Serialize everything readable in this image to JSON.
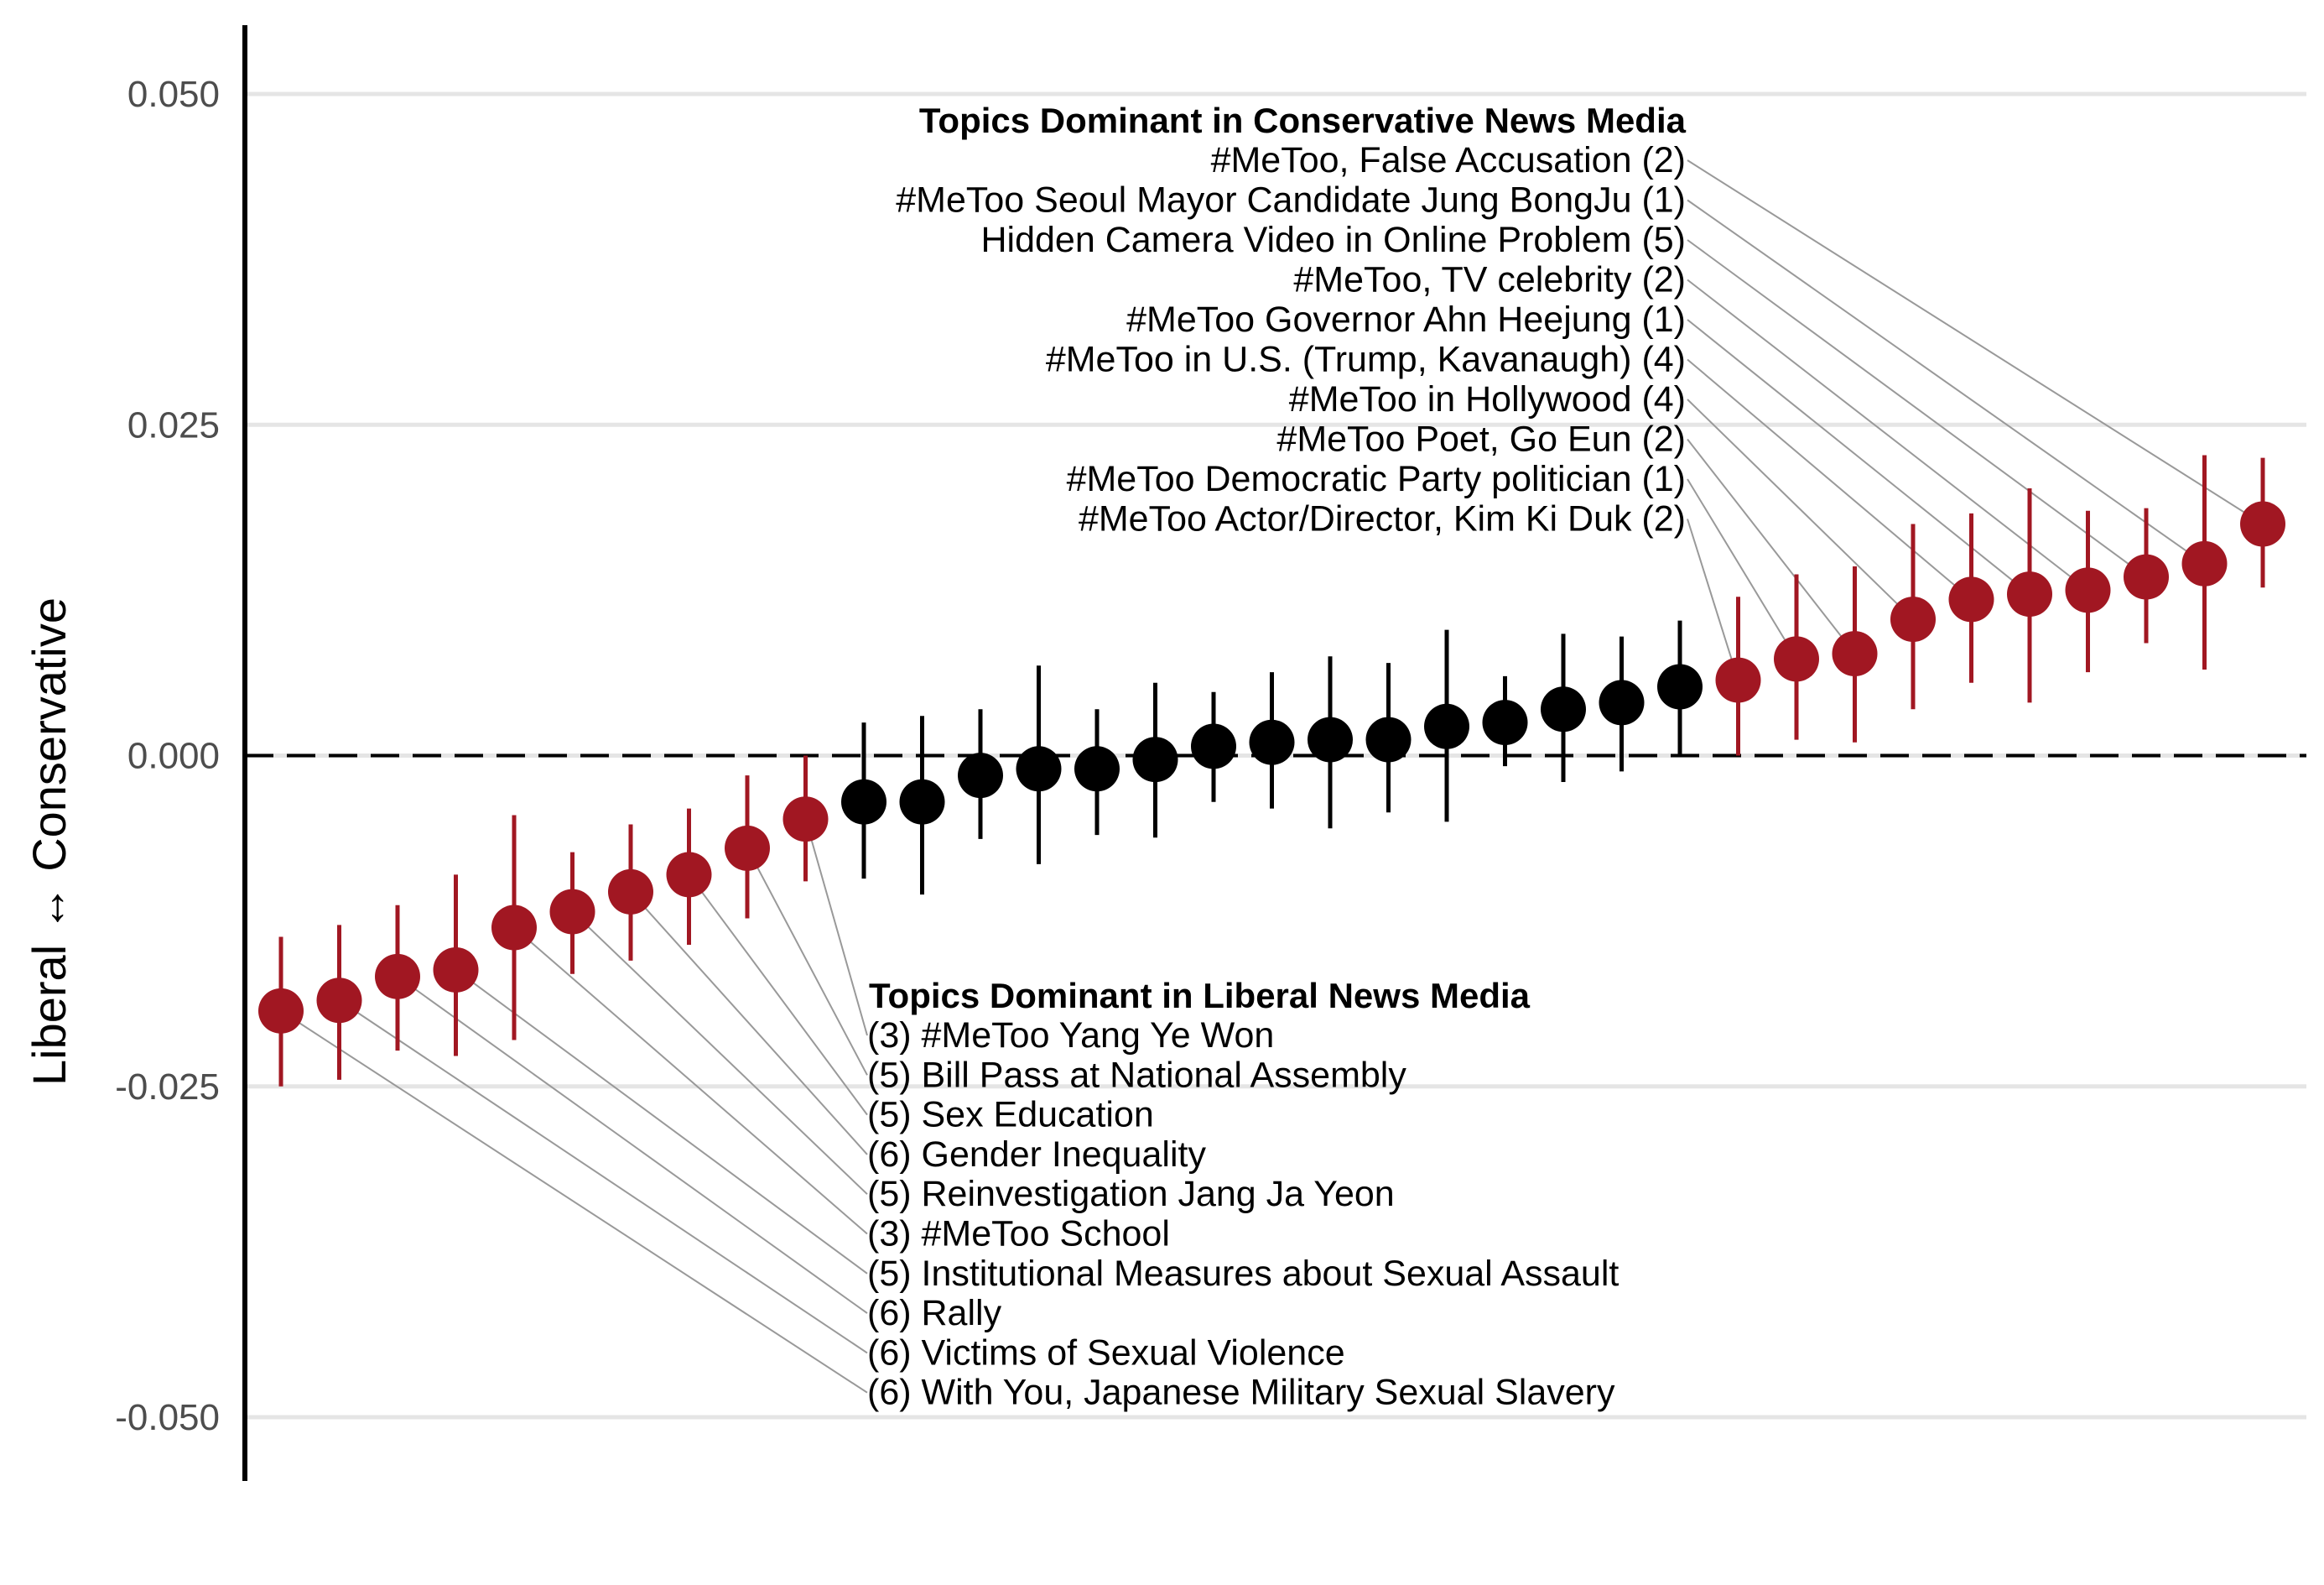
{
  "chart_data": {
    "type": "scatter",
    "title": "",
    "xlabel": "",
    "ylabel": "Liberal ↔ Conservative",
    "ylim": [
      -0.055,
      0.055
    ],
    "yticks": [
      0.05,
      0.025,
      0.0,
      -0.025,
      -0.05
    ],
    "ytick_labels": [
      "0.050",
      "0.025",
      "0.000",
      "-0.025",
      "-0.050"
    ],
    "grid": "horizontal",
    "reference_line": 0.0,
    "colors": {
      "highlight": "#a11722",
      "neutral": "#000000",
      "grid": "#e5e5e5",
      "leader": "#999999"
    },
    "series": [
      {
        "points": [
          {
            "x": 1,
            "y": -0.0193,
            "lo": -0.025,
            "hi": -0.0137,
            "group": "liberal"
          },
          {
            "x": 2,
            "y": -0.0185,
            "lo": -0.0245,
            "hi": -0.0128,
            "group": "liberal"
          },
          {
            "x": 3,
            "y": -0.0167,
            "lo": -0.0223,
            "hi": -0.0113,
            "group": "liberal"
          },
          {
            "x": 4,
            "y": -0.0162,
            "lo": -0.0227,
            "hi": -0.009,
            "group": "liberal"
          },
          {
            "x": 5,
            "y": -0.013,
            "lo": -0.0215,
            "hi": -0.0045,
            "group": "liberal"
          },
          {
            "x": 6,
            "y": -0.0118,
            "lo": -0.0165,
            "hi": -0.0073,
            "group": "liberal"
          },
          {
            "x": 7,
            "y": -0.0103,
            "lo": -0.0155,
            "hi": -0.0052,
            "group": "liberal"
          },
          {
            "x": 8,
            "y": -0.009,
            "lo": -0.0143,
            "hi": -0.004,
            "group": "liberal"
          },
          {
            "x": 9,
            "y": -0.007,
            "lo": -0.0123,
            "hi": -0.0015,
            "group": "liberal"
          },
          {
            "x": 10,
            "y": -0.0048,
            "lo": -0.0095,
            "hi": -0.0,
            "group": "liberal"
          },
          {
            "x": 11,
            "y": -0.0035,
            "lo": -0.0093,
            "hi": 0.0025,
            "group": "neutral"
          },
          {
            "x": 12,
            "y": -0.0035,
            "lo": -0.0105,
            "hi": 0.003,
            "group": "neutral"
          },
          {
            "x": 13,
            "y": -0.0015,
            "lo": -0.0063,
            "hi": 0.0035,
            "group": "neutral"
          },
          {
            "x": 14,
            "y": -0.001,
            "lo": -0.0082,
            "hi": 0.0068,
            "group": "neutral"
          },
          {
            "x": 15,
            "y": -0.001,
            "lo": -0.006,
            "hi": 0.0035,
            "group": "neutral"
          },
          {
            "x": 16,
            "y": -0.0003,
            "lo": -0.0062,
            "hi": 0.0055,
            "group": "neutral"
          },
          {
            "x": 17,
            "y": 0.0007,
            "lo": -0.0035,
            "hi": 0.0048,
            "group": "neutral"
          },
          {
            "x": 18,
            "y": 0.001,
            "lo": -0.004,
            "hi": 0.0063,
            "group": "neutral"
          },
          {
            "x": 19,
            "y": 0.0012,
            "lo": -0.0055,
            "hi": 0.0075,
            "group": "neutral"
          },
          {
            "x": 20,
            "y": 0.0012,
            "lo": -0.0043,
            "hi": 0.007,
            "group": "neutral"
          },
          {
            "x": 21,
            "y": 0.0022,
            "lo": -0.005,
            "hi": 0.0095,
            "group": "neutral"
          },
          {
            "x": 22,
            "y": 0.0025,
            "lo": -0.0008,
            "hi": 0.006,
            "group": "neutral"
          },
          {
            "x": 23,
            "y": 0.0035,
            "lo": -0.002,
            "hi": 0.0092,
            "group": "neutral"
          },
          {
            "x": 24,
            "y": 0.004,
            "lo": -0.0012,
            "hi": 0.009,
            "group": "neutral"
          },
          {
            "x": 25,
            "y": 0.0052,
            "lo": 0.0,
            "hi": 0.0102,
            "group": "neutral"
          },
          {
            "x": 26,
            "y": 0.0057,
            "lo": 0.0,
            "hi": 0.012,
            "group": "conservative"
          },
          {
            "x": 27,
            "y": 0.0073,
            "lo": 0.0012,
            "hi": 0.0137,
            "group": "conservative"
          },
          {
            "x": 28,
            "y": 0.0077,
            "lo": 0.001,
            "hi": 0.0143,
            "group": "conservative"
          },
          {
            "x": 29,
            "y": 0.0103,
            "lo": 0.0035,
            "hi": 0.0175,
            "group": "conservative"
          },
          {
            "x": 30,
            "y": 0.0118,
            "lo": 0.0055,
            "hi": 0.0183,
            "group": "conservative"
          },
          {
            "x": 31,
            "y": 0.0122,
            "lo": 0.004,
            "hi": 0.0202,
            "group": "conservative"
          },
          {
            "x": 32,
            "y": 0.0125,
            "lo": 0.0063,
            "hi": 0.0185,
            "group": "conservative"
          },
          {
            "x": 33,
            "y": 0.0135,
            "lo": 0.0085,
            "hi": 0.0187,
            "group": "conservative"
          },
          {
            "x": 34,
            "y": 0.0145,
            "lo": 0.0065,
            "hi": 0.0227,
            "group": "conservative"
          },
          {
            "x": 35,
            "y": 0.0175,
            "lo": 0.0127,
            "hi": 0.0225,
            "group": "conservative"
          }
        ]
      }
    ],
    "annotations": {
      "conservative": {
        "title": "Topics Dominant in Conservative News Media",
        "items": [
          {
            "text": "#MeToo, False Accusation (2)",
            "point": 35
          },
          {
            "text": "#MeToo Seoul Mayor Candidate Jung BongJu (1)",
            "point": 34
          },
          {
            "text": "Hidden Camera Video in Online Problem (5)",
            "point": 33
          },
          {
            "text": "#MeToo, TV celebrity (2)",
            "point": 32
          },
          {
            "text": "#MeToo Governor Ahn Heejung (1)",
            "point": 31
          },
          {
            "text": "#MeToo in U.S. (Trump, Kavanaugh) (4)",
            "point": 30
          },
          {
            "text": "#MeToo in Hollywood (4)",
            "point": 29
          },
          {
            "text": "#MeToo Poet, Go Eun (2)",
            "point": 28
          },
          {
            "text": "#MeToo Democratic Party politician (1)",
            "point": 27
          },
          {
            "text": "#MeToo Actor/Director, Kim Ki Duk (2)",
            "point": 26
          }
        ]
      },
      "liberal": {
        "title": "Topics Dominant in Liberal News Media",
        "items": [
          {
            "text": "(3) #MeToo Yang Ye Won",
            "point": 10
          },
          {
            "text": "(5) Bill Pass at National Assembly",
            "point": 9
          },
          {
            "text": "(5) Sex Education",
            "point": 8
          },
          {
            "text": "(6) Gender Inequality",
            "point": 7
          },
          {
            "text": "(5) Reinvestigation Jang Ja Yeon",
            "point": 6
          },
          {
            "text": "(3) #MeToo School",
            "point": 5
          },
          {
            "text": "(5) Institutional Measures about Sexual Assault",
            "point": 4
          },
          {
            "text": "(6) Rally",
            "point": 3
          },
          {
            "text": "(6) Victims of Sexual Violence",
            "point": 2
          },
          {
            "text": "(6) With You, Japanese Military Sexual Slavery",
            "point": 1
          }
        ]
      }
    }
  }
}
